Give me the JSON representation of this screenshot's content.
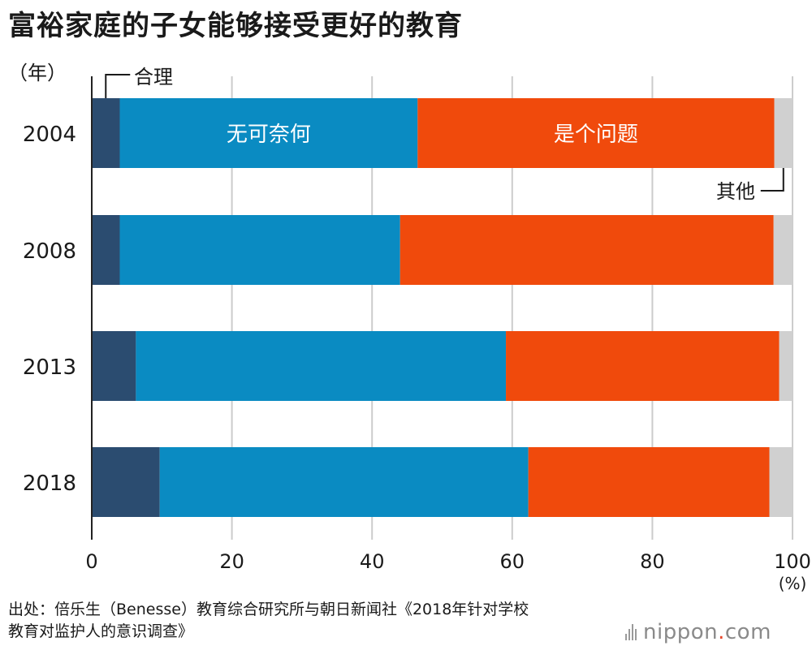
{
  "title": "富裕家庭的子女能够接受更好的教育",
  "source_line1": "出处：倍乐生（Benesse）教育综合研究所与朝日新闻社《2018年针对学校",
  "source_line2": "教育对监护人的意识调查》",
  "logo": {
    "main": "nippon",
    "dot": ".",
    "suffix": "com"
  },
  "colors": {
    "合理": "#2b4c70",
    "无可奈何": "#0a8bc2",
    "是个问题": "#f04a0c",
    "其他": "#d0d0d0",
    "grid": "#cccccc",
    "axis": "#222222"
  },
  "chart_data": {
    "type": "bar",
    "orientation": "horizontal",
    "stacked": true,
    "y_axis_label": "（年）",
    "x_unit_label": "(%)",
    "categories": [
      "2004",
      "2008",
      "2013",
      "2018"
    ],
    "xlim": [
      0,
      100
    ],
    "xticks": [
      0,
      20,
      40,
      60,
      80,
      100
    ],
    "grid": true,
    "series": [
      {
        "name": "合理",
        "values": [
          4.0,
          4.0,
          6.3,
          9.7
        ]
      },
      {
        "name": "无可奈何",
        "values": [
          42.5,
          40.0,
          52.8,
          52.6
        ]
      },
      {
        "name": "是个问题",
        "values": [
          50.9,
          53.3,
          39.0,
          34.4
        ]
      },
      {
        "name": "其他",
        "values": [
          2.6,
          2.7,
          1.9,
          3.3
        ]
      }
    ],
    "inline_labels": {
      "无可奈何": "无可奈何",
      "是个问题": "是个问题"
    },
    "callouts": {
      "合理": "合理",
      "其他": "其他"
    }
  }
}
